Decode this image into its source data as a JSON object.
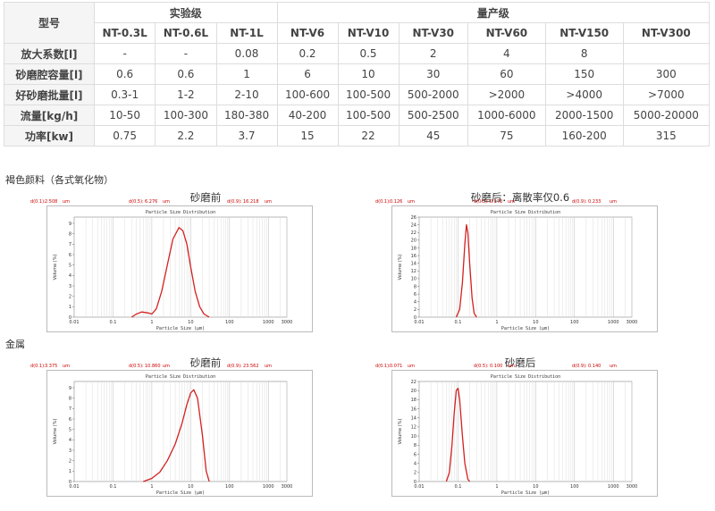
{
  "table": {
    "header_model": "型号",
    "group_lab": "实验级",
    "group_prod": "量产级",
    "models": [
      "NT-0.3L",
      "NT-0.6L",
      "NT-1L",
      "NT-V6",
      "NT-V10",
      "NT-V30",
      "NT-V60",
      "NT-V150",
      "NT-V300"
    ],
    "rows": [
      {
        "label": "放大系数[l]",
        "values": [
          "-",
          "-",
          "0.08",
          "0.2",
          "0.5",
          "2",
          "4",
          "8",
          ""
        ]
      },
      {
        "label": "砂磨腔容量[l]",
        "values": [
          "0.6",
          "0.6",
          "1",
          "6",
          "10",
          "30",
          "60",
          "150",
          "300"
        ]
      },
      {
        "label": "好砂磨批量[l]",
        "values": [
          "0.3-1",
          "1-2",
          "2-10",
          "100-600",
          "100-500",
          "500-2000",
          ">2000",
          ">4000",
          ">7000"
        ]
      },
      {
        "label": "流量[kg/h]",
        "values": [
          "10-50",
          "100-300",
          "180-380",
          "40-200",
          "100-500",
          "500-2500",
          "1000-6000",
          "2000-1500",
          "5000-20000"
        ]
      },
      {
        "label": "功率[kw]",
        "values": [
          "0.75",
          "2.2",
          "3.7",
          "15",
          "22",
          "45",
          "75",
          "160-200",
          "315"
        ]
      }
    ]
  },
  "section1": "褐色颜料（各式氧化物）",
  "section2": "金属",
  "charts": [
    {
      "title": "砂磨前",
      "inner_title": "Particle Size Distribution",
      "xlabel": "Particle Size (μm)",
      "ylabel": "Volume (%)",
      "d_labels": [
        "d(0.1):",
        "2.508",
        "um",
        "d(0.5):",
        "6.276",
        "um",
        "d(0.9):",
        "16.218",
        "um"
      ],
      "xticks": [
        "0.01",
        "0.1",
        "1",
        "10",
        "100",
        "1000",
        "3000"
      ],
      "yticks": [
        "0",
        "1",
        "2",
        "3",
        "4",
        "5",
        "6",
        "7",
        "8",
        "9"
      ],
      "chart_data": {
        "type": "line",
        "xscale": "log",
        "xlim": [
          0.01,
          3000
        ],
        "ylim": [
          0,
          9.6
        ],
        "x": [
          0.3,
          0.4,
          0.55,
          0.8,
          1.0,
          1.3,
          1.8,
          2.5,
          3.5,
          5.0,
          6.3,
          8,
          10,
          13,
          17,
          22,
          30
        ],
        "y": [
          0,
          0.3,
          0.5,
          0.4,
          0.3,
          0.8,
          2.5,
          5.0,
          7.5,
          8.6,
          8.3,
          7.0,
          4.8,
          2.5,
          1.0,
          0.3,
          0
        ]
      }
    },
    {
      "title": "砂磨后：离散率仅0.6",
      "inner_title": "Particle Size Distribution",
      "xlabel": "Particle Size (μm)",
      "ylabel": "Volume (%)",
      "d_labels": [
        "d(0.1):",
        "0.126",
        "um",
        "d(0.5):",
        "0.173",
        "um",
        "d(0.9):",
        "0.233",
        "um"
      ],
      "xticks": [
        "0.01",
        "0.1",
        "1",
        "10",
        "100",
        "1000",
        "3000"
      ],
      "yticks": [
        "0",
        "2",
        "4",
        "6",
        "8",
        "10",
        "12",
        "14",
        "16",
        "18",
        "20",
        "22",
        "24",
        "26"
      ],
      "chart_data": {
        "type": "line",
        "xscale": "log",
        "xlim": [
          0.01,
          3000
        ],
        "ylim": [
          0,
          26
        ],
        "x": [
          0.09,
          0.11,
          0.13,
          0.15,
          0.165,
          0.18,
          0.2,
          0.23,
          0.26,
          0.3
        ],
        "y": [
          0,
          2,
          9,
          19,
          24,
          22,
          14,
          5,
          1,
          0
        ]
      }
    },
    {
      "title": "砂磨前",
      "inner_title": "Particle Size Distribution",
      "xlabel": "Particle Size (μm)",
      "ylabel": "Volume (%)",
      "d_labels": [
        "d(0.1):",
        "3.375",
        "um",
        "d(0.5):",
        "10.860",
        "um",
        "d(0.9):",
        "23.562",
        "um"
      ],
      "xticks": [
        "0.01",
        "0.1",
        "1",
        "10",
        "100",
        "1000",
        "3000"
      ],
      "yticks": [
        "0",
        "1",
        "2",
        "3",
        "4",
        "5",
        "6",
        "7",
        "8",
        "9"
      ],
      "chart_data": {
        "type": "line",
        "xscale": "log",
        "xlim": [
          0.01,
          3000
        ],
        "ylim": [
          0,
          9.6
        ],
        "x": [
          0.6,
          1.0,
          1.6,
          2.5,
          4,
          6,
          8,
          10,
          12,
          15,
          20,
          25,
          30
        ],
        "y": [
          0,
          0.3,
          0.9,
          2.0,
          3.6,
          5.6,
          7.4,
          8.5,
          8.8,
          8.0,
          4.5,
          1.0,
          0
        ]
      }
    },
    {
      "title": "砂磨后",
      "inner_title": "Particle Size Distribution",
      "xlabel": "Particle Size (μm)",
      "ylabel": "Volume (%)",
      "d_labels": [
        "d(0.1):",
        "0.071",
        "um",
        "d(0.5):",
        "0.100",
        "um",
        "d(0.9):",
        "0.140",
        "um"
      ],
      "xticks": [
        "0.01",
        "0.1",
        "1",
        "10",
        "100",
        "1000",
        "3000"
      ],
      "yticks": [
        "0",
        "2",
        "4",
        "6",
        "8",
        "10",
        "12",
        "14",
        "16",
        "18",
        "20",
        "22"
      ],
      "chart_data": {
        "type": "line",
        "xscale": "log",
        "xlim": [
          0.01,
          3000
        ],
        "ylim": [
          0,
          22
        ],
        "x": [
          0.05,
          0.06,
          0.07,
          0.08,
          0.09,
          0.1,
          0.11,
          0.13,
          0.15,
          0.18,
          0.2
        ],
        "y": [
          0,
          2,
          8,
          15,
          20,
          20.5,
          18,
          10,
          4,
          0.5,
          0
        ]
      }
    }
  ]
}
